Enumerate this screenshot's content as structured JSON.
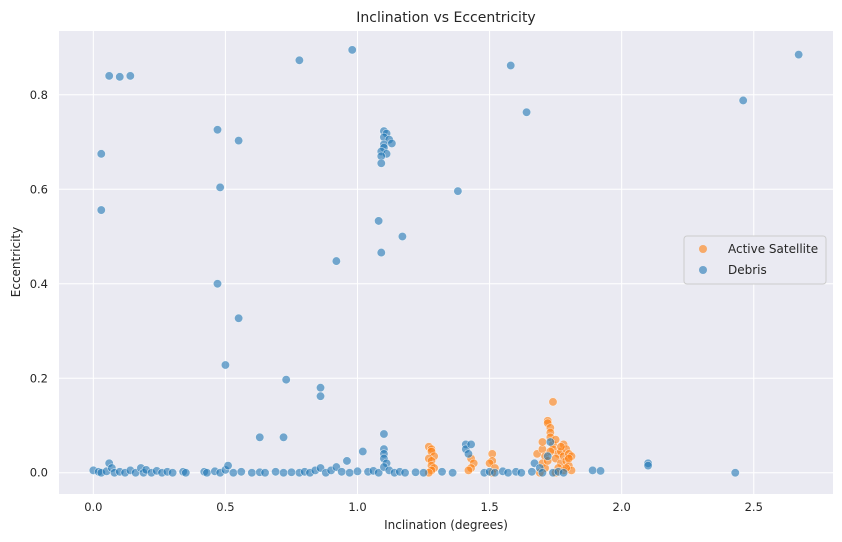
{
  "chart_data": {
    "type": "scatter",
    "title": "Inclination vs Eccentricity",
    "xlabel": "Inclination (degrees)",
    "ylabel": "Eccentricity",
    "xlim": [
      -0.13,
      2.8
    ],
    "ylim": [
      -0.045,
      0.935
    ],
    "xticks": [
      0.0,
      0.5,
      1.0,
      1.5,
      2.0,
      2.5
    ],
    "xtick_labels": [
      "0.0",
      "0.5",
      "1.0",
      "1.5",
      "2.0",
      "2.5"
    ],
    "yticks": [
      0.0,
      0.2,
      0.4,
      0.6,
      0.8
    ],
    "ytick_labels": [
      "0.0",
      "0.2",
      "0.4",
      "0.6",
      "0.8"
    ],
    "grid": true,
    "legend_position": "center-right",
    "colors": {
      "background": "#eaeaf2",
      "grid": "#ffffff",
      "active": "#ff7f0e",
      "debris": "#1f77b4"
    },
    "series": [
      {
        "name": "Active Satellite",
        "color": "#ff7f0e",
        "points": [
          [
            1.27,
            0.055
          ],
          [
            1.28,
            0.05
          ],
          [
            1.28,
            0.045
          ],
          [
            1.29,
            0.035
          ],
          [
            1.27,
            0.03
          ],
          [
            1.28,
            0.025
          ],
          [
            1.28,
            0.015
          ],
          [
            1.29,
            0.01
          ],
          [
            1.28,
            0.005
          ],
          [
            1.27,
            0.0
          ],
          [
            1.43,
            0.03
          ],
          [
            1.44,
            0.02
          ],
          [
            1.43,
            0.01
          ],
          [
            1.42,
            0.005
          ],
          [
            1.51,
            0.04
          ],
          [
            1.51,
            0.025
          ],
          [
            1.5,
            0.02
          ],
          [
            1.52,
            0.01
          ],
          [
            1.51,
            0.0
          ],
          [
            1.68,
            0.04
          ],
          [
            1.7,
            0.05
          ],
          [
            1.71,
            0.035
          ],
          [
            1.72,
            0.11
          ],
          [
            1.72,
            0.105
          ],
          [
            1.73,
            0.095
          ],
          [
            1.73,
            0.085
          ],
          [
            1.74,
            0.15
          ],
          [
            1.73,
            0.075
          ],
          [
            1.74,
            0.06
          ],
          [
            1.75,
            0.07
          ],
          [
            1.74,
            0.05
          ],
          [
            1.76,
            0.04
          ],
          [
            1.75,
            0.03
          ],
          [
            1.77,
            0.045
          ],
          [
            1.77,
            0.02
          ],
          [
            1.78,
            0.06
          ],
          [
            1.78,
            0.035
          ],
          [
            1.79,
            0.05
          ],
          [
            1.79,
            0.025
          ],
          [
            1.8,
            0.04
          ],
          [
            1.8,
            0.015
          ],
          [
            1.81,
            0.035
          ],
          [
            1.81,
            0.005
          ],
          [
            1.7,
            0.02
          ],
          [
            1.71,
            0.01
          ],
          [
            1.69,
            0.0
          ],
          [
            1.72,
            0.025
          ],
          [
            1.76,
            0.01
          ],
          [
            1.78,
            0.005
          ],
          [
            1.75,
            0.0
          ],
          [
            1.73,
            0.045
          ],
          [
            1.77,
            0.055
          ],
          [
            1.79,
            0.01
          ],
          [
            1.8,
            0.03
          ],
          [
            1.7,
            0.065
          ]
        ]
      },
      {
        "name": "Debris",
        "color": "#1f77b4",
        "points": [
          [
            0.0,
            0.005
          ],
          [
            0.02,
            0.002
          ],
          [
            0.03,
            0.0
          ],
          [
            0.05,
            0.003
          ],
          [
            0.06,
            0.02
          ],
          [
            0.07,
            0.01
          ],
          [
            0.08,
            0.0
          ],
          [
            0.1,
            0.002
          ],
          [
            0.12,
            0.0
          ],
          [
            0.14,
            0.005
          ],
          [
            0.16,
            0.0
          ],
          [
            0.18,
            0.01
          ],
          [
            0.19,
            0.0
          ],
          [
            0.2,
            0.006
          ],
          [
            0.22,
            0.0
          ],
          [
            0.24,
            0.004
          ],
          [
            0.26,
            0.0
          ],
          [
            0.28,
            0.002
          ],
          [
            0.3,
            0.0
          ],
          [
            0.34,
            0.002
          ],
          [
            0.35,
            0.0
          ],
          [
            0.42,
            0.002
          ],
          [
            0.43,
            0.0
          ],
          [
            0.46,
            0.003
          ],
          [
            0.48,
            0.0
          ],
          [
            0.5,
            0.006
          ],
          [
            0.51,
            0.015
          ],
          [
            0.53,
            0.0
          ],
          [
            0.56,
            0.002
          ],
          [
            0.6,
            0.0
          ],
          [
            0.63,
            0.001
          ],
          [
            0.65,
            0.0
          ],
          [
            0.69,
            0.002
          ],
          [
            0.72,
            0.0
          ],
          [
            0.75,
            0.001
          ],
          [
            0.78,
            0.0
          ],
          [
            0.8,
            0.002
          ],
          [
            0.82,
            0.0
          ],
          [
            0.84,
            0.005
          ],
          [
            0.86,
            0.01
          ],
          [
            0.88,
            0.0
          ],
          [
            0.9,
            0.005
          ],
          [
            0.92,
            0.012
          ],
          [
            0.94,
            0.002
          ],
          [
            0.96,
            0.025
          ],
          [
            0.97,
            0.0
          ],
          [
            1.0,
            0.003
          ],
          [
            1.02,
            0.045
          ],
          [
            1.04,
            0.002
          ],
          [
            1.06,
            0.004
          ],
          [
            1.08,
            0.0
          ],
          [
            1.1,
            0.05
          ],
          [
            1.1,
            0.04
          ],
          [
            1.1,
            0.03
          ],
          [
            1.11,
            0.02
          ],
          [
            1.1,
            0.012
          ],
          [
            1.12,
            0.005
          ],
          [
            1.14,
            0.0
          ],
          [
            1.16,
            0.002
          ],
          [
            1.18,
            0.0
          ],
          [
            1.22,
            0.001
          ],
          [
            1.25,
            0.0
          ],
          [
            1.32,
            0.002
          ],
          [
            1.36,
            0.0
          ],
          [
            1.41,
            0.06
          ],
          [
            1.41,
            0.05
          ],
          [
            1.43,
            0.06
          ],
          [
            1.42,
            0.04
          ],
          [
            1.48,
            0.0
          ],
          [
            1.5,
            0.002
          ],
          [
            1.52,
            0.0
          ],
          [
            1.55,
            0.003
          ],
          [
            1.57,
            0.0
          ],
          [
            1.6,
            0.002
          ],
          [
            1.62,
            0.0
          ],
          [
            1.66,
            0.002
          ],
          [
            1.67,
            0.02
          ],
          [
            1.69,
            0.01
          ],
          [
            1.7,
            0.0
          ],
          [
            1.72,
            0.035
          ],
          [
            1.73,
            0.065
          ],
          [
            1.74,
            0.0
          ],
          [
            1.76,
            0.002
          ],
          [
            1.78,
            0.0
          ],
          [
            1.89,
            0.005
          ],
          [
            1.92,
            0.004
          ],
          [
            2.1,
            0.02
          ],
          [
            2.1,
            0.015
          ],
          [
            2.43,
            0.0
          ],
          [
            0.06,
            0.84
          ],
          [
            0.1,
            0.838
          ],
          [
            0.14,
            0.84
          ],
          [
            0.03,
            0.675
          ],
          [
            0.03,
            0.556
          ],
          [
            0.47,
            0.726
          ],
          [
            0.55,
            0.703
          ],
          [
            0.48,
            0.604
          ],
          [
            0.47,
            0.4
          ],
          [
            0.55,
            0.327
          ],
          [
            0.5,
            0.228
          ],
          [
            0.73,
            0.197
          ],
          [
            0.63,
            0.075
          ],
          [
            0.72,
            0.075
          ],
          [
            0.78,
            0.873
          ],
          [
            0.86,
            0.18
          ],
          [
            0.86,
            0.162
          ],
          [
            0.92,
            0.448
          ],
          [
            0.98,
            0.895
          ],
          [
            1.08,
            0.533
          ],
          [
            1.09,
            0.466
          ],
          [
            1.17,
            0.5
          ],
          [
            1.1,
            0.723
          ],
          [
            1.11,
            0.718
          ],
          [
            1.1,
            0.71
          ],
          [
            1.12,
            0.705
          ],
          [
            1.1,
            0.695
          ],
          [
            1.13,
            0.697
          ],
          [
            1.1,
            0.688
          ],
          [
            1.09,
            0.68
          ],
          [
            1.11,
            0.675
          ],
          [
            1.09,
            0.67
          ],
          [
            1.09,
            0.655
          ],
          [
            1.1,
            0.082
          ],
          [
            1.38,
            0.596
          ],
          [
            1.58,
            0.862
          ],
          [
            1.64,
            0.763
          ],
          [
            2.46,
            0.788
          ],
          [
            2.67,
            0.885
          ]
        ]
      }
    ]
  }
}
